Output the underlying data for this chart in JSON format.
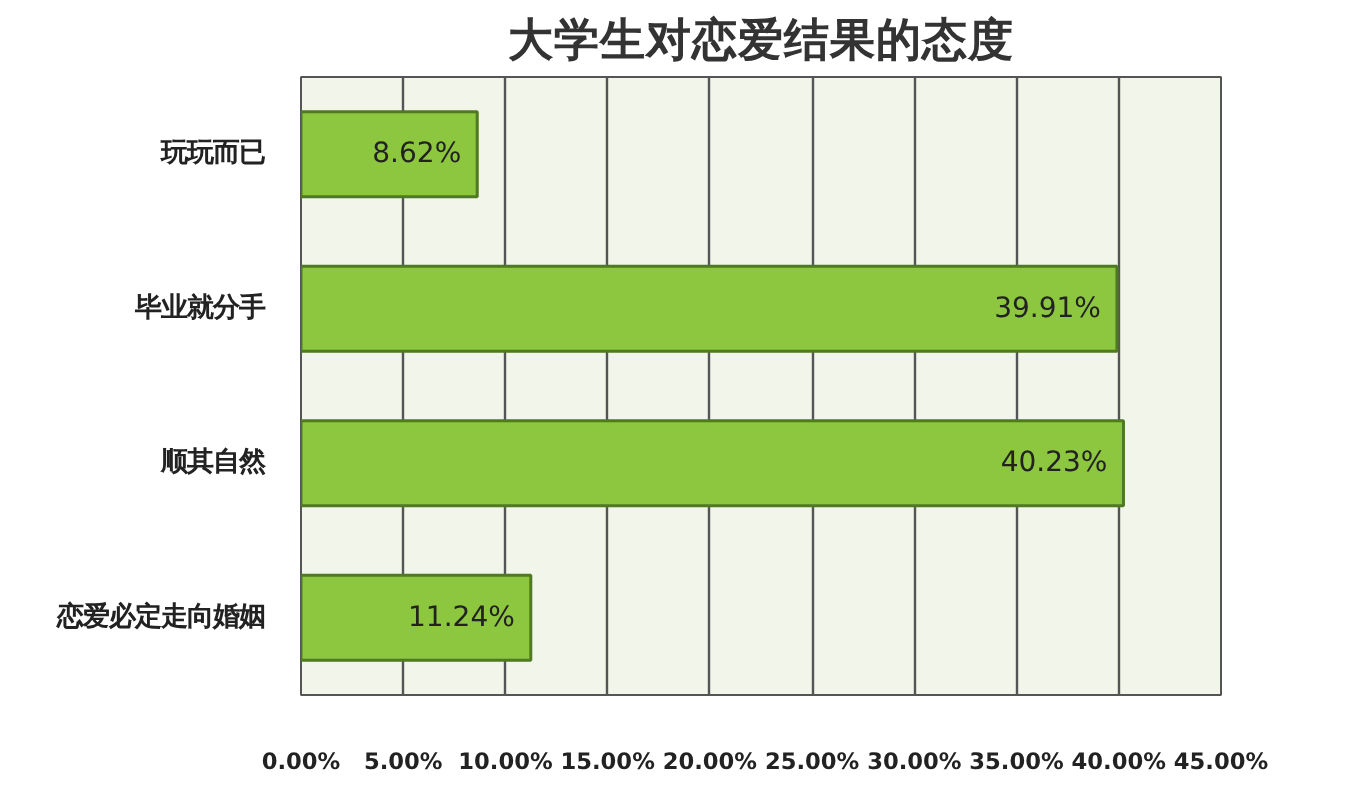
{
  "chart_data": {
    "type": "bar",
    "orientation": "horizontal",
    "title": "大学生对恋爱结果的态度",
    "categories": [
      "玩玩而已",
      "毕业就分手",
      "顺其自然",
      "恋爱必定走向婚姻"
    ],
    "values": [
      8.62,
      39.91,
      40.23,
      11.24
    ],
    "value_labels": [
      "8.62%",
      "39.91%",
      "40.23%",
      "11.24%"
    ],
    "color": "#8dc63f",
    "xlim": [
      0,
      45
    ],
    "xticks": [
      {
        "value": 0,
        "label": "0.00%"
      },
      {
        "value": 5,
        "label": "5.00%"
      },
      {
        "value": 10,
        "label": "10.00%"
      },
      {
        "value": 15,
        "label": "15.00%"
      },
      {
        "value": 20,
        "label": "20.00%"
      },
      {
        "value": 25,
        "label": "25.00%"
      },
      {
        "value": 30,
        "label": "30.00%"
      },
      {
        "value": 35,
        "label": "35.00%"
      },
      {
        "value": 40,
        "label": "40.00%"
      },
      {
        "value": 45,
        "label": "45.00%"
      }
    ],
    "grid": "x"
  }
}
